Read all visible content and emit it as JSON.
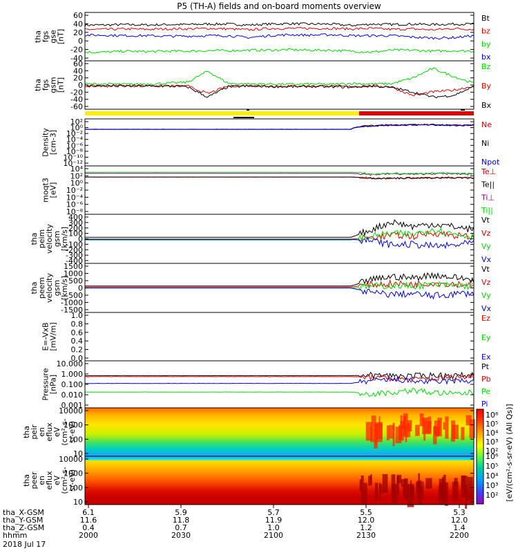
{
  "title": "P5 (TH-A) fields and on-board moments overview",
  "colors": {
    "black": "#000000",
    "red": "#e00000",
    "green": "#00d800",
    "blue": "#0000e0",
    "yellow": "#ffee00"
  },
  "chart_data": [
    {
      "id": "fgs_gse",
      "type": "line",
      "ylabel": [
        "tha",
        "fgs",
        "gse",
        "[nT]"
      ],
      "yticks": [
        "60",
        "40",
        "20",
        "0",
        "-20",
        "-40"
      ],
      "ylim": [
        -40,
        60
      ],
      "series": [
        {
          "name": "Bt",
          "color": "black",
          "values": [
            34,
            34,
            35,
            34,
            35,
            35,
            36,
            36,
            34,
            36,
            37,
            36,
            36,
            33,
            36,
            35,
            36,
            35,
            36,
            36
          ]
        },
        {
          "name": "bz",
          "color": "red",
          "values": [
            25,
            25,
            26,
            25,
            26,
            26,
            27,
            26,
            24,
            27,
            27,
            27,
            27,
            26,
            27,
            25,
            26,
            24,
            27,
            25
          ]
        },
        {
          "name": "by",
          "color": "green",
          "values": [
            -22,
            -22,
            -20,
            -21,
            -20,
            -20,
            -19,
            -19,
            -18,
            -18,
            -17,
            -18,
            -18,
            -20,
            -22,
            -18,
            -18,
            -20,
            -19,
            -20
          ]
        },
        {
          "name": "bx",
          "color": "blue",
          "values": [
            13,
            13,
            12,
            12,
            11,
            11,
            12,
            12,
            8,
            12,
            14,
            13,
            14,
            12,
            12,
            12,
            9,
            7,
            8,
            12
          ]
        }
      ]
    },
    {
      "id": "fgs_gsm",
      "type": "line",
      "ylabel": [
        "tha",
        "fgs",
        "gsm",
        "[nT]"
      ],
      "yticks": [
        "60",
        "40",
        "20",
        "0",
        "-20",
        "-40",
        "-60"
      ],
      "ylim": [
        -70,
        70
      ],
      "series": [
        {
          "name": "Bz",
          "color": "green",
          "values": [
            3,
            3,
            2,
            3,
            5,
            8,
            40,
            5,
            3,
            3,
            2,
            3,
            2,
            5,
            3,
            4,
            20,
            48,
            25,
            5
          ]
        },
        {
          "name": "By",
          "color": "red",
          "values": [
            -3,
            -3,
            -2,
            -2,
            -3,
            -3,
            -25,
            -3,
            -2,
            -3,
            -3,
            -3,
            -3,
            -5,
            -2,
            -6,
            -30,
            -20,
            -15,
            -3
          ]
        },
        {
          "name": "Bx",
          "color": "black",
          "values": [
            -2,
            -2,
            -3,
            -3,
            -3,
            -5,
            -35,
            -5,
            -3,
            -4,
            -5,
            -4,
            -5,
            -6,
            -3,
            -7,
            -20,
            -35,
            -30,
            -5
          ]
        }
      ]
    },
    {
      "id": "density",
      "type": "line",
      "ylog": true,
      "ylabel": [
        "Density",
        "[cm-3]"
      ],
      "yticks": [
        "10²",
        "10⁰",
        "10⁻²",
        "10⁻⁴",
        "10⁻⁶",
        "10⁻⁸",
        "10⁻¹⁰",
        "10⁻¹²"
      ],
      "series": [
        {
          "name": "Ne",
          "color": "red",
          "values": [
            0.3,
            0.3,
            0.3,
            0.3,
            0.3,
            0.3,
            0.3,
            0.3,
            0.3,
            0.3,
            0.3,
            0.3,
            0.3,
            0.3,
            5,
            8,
            10,
            10,
            6,
            8
          ]
        },
        {
          "name": "Ni",
          "color": "black",
          "values": [
            0.3,
            0.3,
            0.3,
            0.3,
            0.3,
            0.3,
            0.3,
            0.3,
            0.3,
            0.3,
            0.3,
            0.3,
            0.3,
            0.3,
            5,
            8,
            10,
            10,
            6,
            8
          ]
        },
        {
          "name": "Npot",
          "color": "blue",
          "values": [
            0.25,
            0.25,
            0.25,
            0.25,
            0.25,
            0.25,
            0.25,
            0.25,
            0.25,
            0.25,
            0.25,
            0.25,
            0.25,
            0.25,
            4,
            7,
            9,
            9,
            5,
            7
          ]
        }
      ]
    },
    {
      "id": "temp",
      "type": "line",
      "ylog": true,
      "ylabel": [
        "moqt3",
        "[eV]"
      ],
      "yticks": [
        "10⁴",
        "10²",
        "10⁰",
        "10⁻²",
        "10⁻⁴",
        "10⁻⁶",
        "10⁻⁸"
      ],
      "series": [
        {
          "name": "Te⊥",
          "color": "red",
          "values": [
            60,
            60,
            60,
            60,
            60,
            60,
            60,
            60,
            60,
            60,
            60,
            60,
            60,
            60,
            30,
            25,
            35,
            30,
            40,
            30
          ]
        },
        {
          "name": "Te||",
          "color": "black",
          "values": [
            60,
            60,
            60,
            60,
            60,
            60,
            60,
            60,
            60,
            60,
            60,
            60,
            60,
            60,
            30,
            25,
            35,
            30,
            40,
            30
          ]
        },
        {
          "name": "Ti⊥",
          "color": "purple",
          "values": [
            700,
            700,
            700,
            700,
            700,
            700,
            700,
            700,
            700,
            700,
            700,
            700,
            700,
            700,
            300,
            500,
            400,
            600,
            500,
            400
          ]
        },
        {
          "name": "Ti||",
          "color": "green",
          "values": [
            1500,
            1500,
            1500,
            1500,
            1500,
            1500,
            1500,
            1500,
            1500,
            1500,
            1500,
            1500,
            1500,
            1500,
            400,
            700,
            500,
            900,
            600,
            500
          ]
        }
      ]
    },
    {
      "id": "peim_vel",
      "type": "line",
      "ylabel": [
        "tha",
        "peim",
        "velocity",
        "gsm",
        "[km/s]"
      ],
      "yticks": [
        "400",
        "300",
        "200",
        "100",
        "0",
        "-100",
        "-200",
        "-300",
        "-400"
      ],
      "ylim": [
        -400,
        400
      ],
      "series": [
        {
          "name": "Vt",
          "color": "black",
          "values": [
            25,
            25,
            25,
            25,
            25,
            25,
            25,
            25,
            25,
            25,
            25,
            25,
            25,
            25,
            150,
            280,
            200,
            240,
            200,
            150
          ]
        },
        {
          "name": "Vz",
          "color": "red",
          "values": [
            -5,
            -5,
            -5,
            -5,
            -5,
            -5,
            -5,
            -5,
            -5,
            -5,
            -5,
            -5,
            -5,
            -5,
            20,
            60,
            40,
            100,
            60,
            20
          ]
        },
        {
          "name": "Vy",
          "color": "green",
          "values": [
            -20,
            -20,
            -20,
            -20,
            -20,
            -20,
            -20,
            -20,
            -20,
            -20,
            -20,
            -20,
            -20,
            -20,
            40,
            90,
            70,
            160,
            80,
            40
          ]
        },
        {
          "name": "Vx",
          "color": "blue",
          "values": [
            -10,
            -10,
            -10,
            -10,
            -10,
            -10,
            -10,
            -10,
            -10,
            -10,
            -10,
            -10,
            -10,
            -10,
            -30,
            -100,
            -90,
            -120,
            -110,
            -60
          ]
        }
      ]
    },
    {
      "id": "peem_vel",
      "type": "line",
      "ylabel": [
        "tha",
        "peem",
        "velocity",
        "gsm",
        "[km/s]"
      ],
      "yticks": [
        "1500",
        "1000",
        "500",
        "0",
        "-500",
        "-1000",
        "-1500"
      ],
      "ylim": [
        -1500,
        1500
      ],
      "series": [
        {
          "name": "Vt",
          "color": "black",
          "values": [
            120,
            120,
            120,
            120,
            120,
            120,
            120,
            120,
            120,
            120,
            120,
            120,
            120,
            120,
            500,
            700,
            600,
            800,
            650,
            500
          ]
        },
        {
          "name": "Vz",
          "color": "red",
          "values": [
            60,
            60,
            60,
            60,
            60,
            60,
            60,
            60,
            60,
            60,
            60,
            60,
            60,
            60,
            200,
            250,
            220,
            300,
            250,
            200
          ]
        },
        {
          "name": "Vy",
          "color": "green",
          "values": [
            -10,
            -10,
            -10,
            -10,
            -10,
            -10,
            -10,
            -10,
            -10,
            -10,
            -10,
            -10,
            -10,
            -10,
            100,
            150,
            120,
            200,
            150,
            100
          ]
        },
        {
          "name": "Vx",
          "color": "blue",
          "values": [
            0,
            0,
            0,
            0,
            0,
            0,
            0,
            0,
            0,
            0,
            0,
            0,
            0,
            0,
            -300,
            -400,
            -350,
            -500,
            -380,
            -300
          ]
        }
      ]
    },
    {
      "id": "efield",
      "type": "line",
      "ylabel": [
        "E=-VxB",
        "[mV/m]"
      ],
      "yticks": [
        "1.0",
        "0.8",
        "0.6",
        "0.4",
        "0.2",
        "0.0"
      ],
      "ylim": [
        0,
        1
      ],
      "series": [
        {
          "name": "Ez",
          "color": "red",
          "values": []
        },
        {
          "name": "Ey",
          "color": "green",
          "values": []
        },
        {
          "name": "Ex",
          "color": "blue",
          "values": []
        }
      ]
    },
    {
      "id": "pressure",
      "type": "line",
      "ylog": true,
      "ylabel": [
        "Pressure",
        "[nPa]"
      ],
      "yticks": [
        "10.000",
        "1.000",
        "0.100",
        "0.010",
        "0.001"
      ],
      "series": [
        {
          "name": "Pt",
          "color": "black",
          "values": [
            0.55,
            0.55,
            0.55,
            0.55,
            0.55,
            0.55,
            0.55,
            0.55,
            0.55,
            0.55,
            0.55,
            0.55,
            0.55,
            0.55,
            0.6,
            0.55,
            0.5,
            0.6,
            0.55,
            0.6
          ]
        },
        {
          "name": "Pb",
          "color": "red",
          "values": [
            0.45,
            0.45,
            0.45,
            0.45,
            0.45,
            0.45,
            0.45,
            0.45,
            0.45,
            0.45,
            0.45,
            0.45,
            0.45,
            0.45,
            0.4,
            0.3,
            0.25,
            0.3,
            0.4,
            0.45
          ]
        },
        {
          "name": "Pe",
          "color": "green",
          "values": [
            0.022,
            0.022,
            0.022,
            0.022,
            0.022,
            0.022,
            0.022,
            0.022,
            0.022,
            0.022,
            0.022,
            0.022,
            0.022,
            0.022,
            0.015,
            0.02,
            0.03,
            0.02,
            0.015,
            0.02
          ]
        },
        {
          "name": "Pi",
          "color": "blue",
          "values": [
            0.12,
            0.12,
            0.12,
            0.12,
            0.12,
            0.12,
            0.12,
            0.12,
            0.12,
            0.12,
            0.12,
            0.12,
            0.12,
            0.12,
            0.2,
            0.25,
            0.2,
            0.15,
            0.2,
            0.2
          ]
        }
      ]
    },
    {
      "id": "peir_spec",
      "type": "heatmap",
      "ylabel": [
        "tha",
        "peir",
        "en",
        "eflux",
        "eV",
        "(cm²-s-",
        "sr-eV)"
      ],
      "yticks": [
        "10000",
        "1000",
        "100",
        "10"
      ]
    },
    {
      "id": "peer_spec",
      "type": "heatmap",
      "ylabel": [
        "tha",
        "peer",
        "en",
        "eflux",
        "eV",
        "(cm²-s-",
        "sr-eV)"
      ],
      "yticks": [
        "10000",
        "1000",
        "100",
        "10"
      ]
    }
  ],
  "colorbar": {
    "ticks_top": [
      "10⁶",
      "10⁵",
      "10⁴",
      "10³",
      "10²"
    ],
    "ticks_bottom": [
      "10⁶",
      "10⁵",
      "10⁴",
      "10³",
      "10²"
    ],
    "label": "[eV/(cm²-s-sr-eV) (All Qs)]"
  },
  "xaxis": {
    "rows": [
      {
        "label": "tha_X-GSM",
        "values": [
          "6.1",
          "5.9",
          "5.7",
          "5.5",
          "5.3"
        ]
      },
      {
        "label": "tha_Y-GSM",
        "values": [
          "11.6",
          "11.8",
          "11.9",
          "12.0",
          "12.0"
        ]
      },
      {
        "label": "tha_Z-GSM",
        "values": [
          "0.4",
          "0.7",
          "1.0",
          "1.2",
          "1.4"
        ]
      },
      {
        "label": "hhmm",
        "values": [
          "2000",
          "2030",
          "2100",
          "2130",
          "2200"
        ]
      }
    ],
    "date": "2018 Jul 17"
  }
}
